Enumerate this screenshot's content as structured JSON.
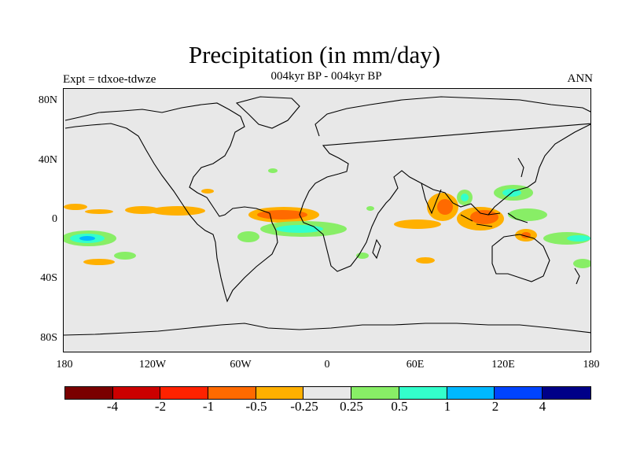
{
  "title": "Precipitation (in mm/day)",
  "subtitle": "004kyr BP - 004kyr BP",
  "left_label": "Expt = tdxoe-tdwze",
  "right_label": "ANN",
  "axes": {
    "y_ticks": [
      "80N",
      "40N",
      "0",
      "40S",
      "80S"
    ],
    "x_ticks": [
      "180",
      "120W",
      "60W",
      "0",
      "60E",
      "120E",
      "180"
    ]
  },
  "colorbar": {
    "colors": [
      "#7a0000",
      "#cc0000",
      "#ff2200",
      "#ff6a00",
      "#ffb000",
      "#e8e8e8",
      "#88ee66",
      "#33ffcc",
      "#00b8ff",
      "#0044ff",
      "#000088"
    ],
    "labels": [
      "-4",
      "-2",
      "-1",
      "-0.5",
      "-0.25",
      "0.25",
      "0.5",
      "1",
      "2",
      "4"
    ]
  },
  "map": {
    "ocean_color": "#e8e8e8",
    "coastline_color": "#000000"
  }
}
